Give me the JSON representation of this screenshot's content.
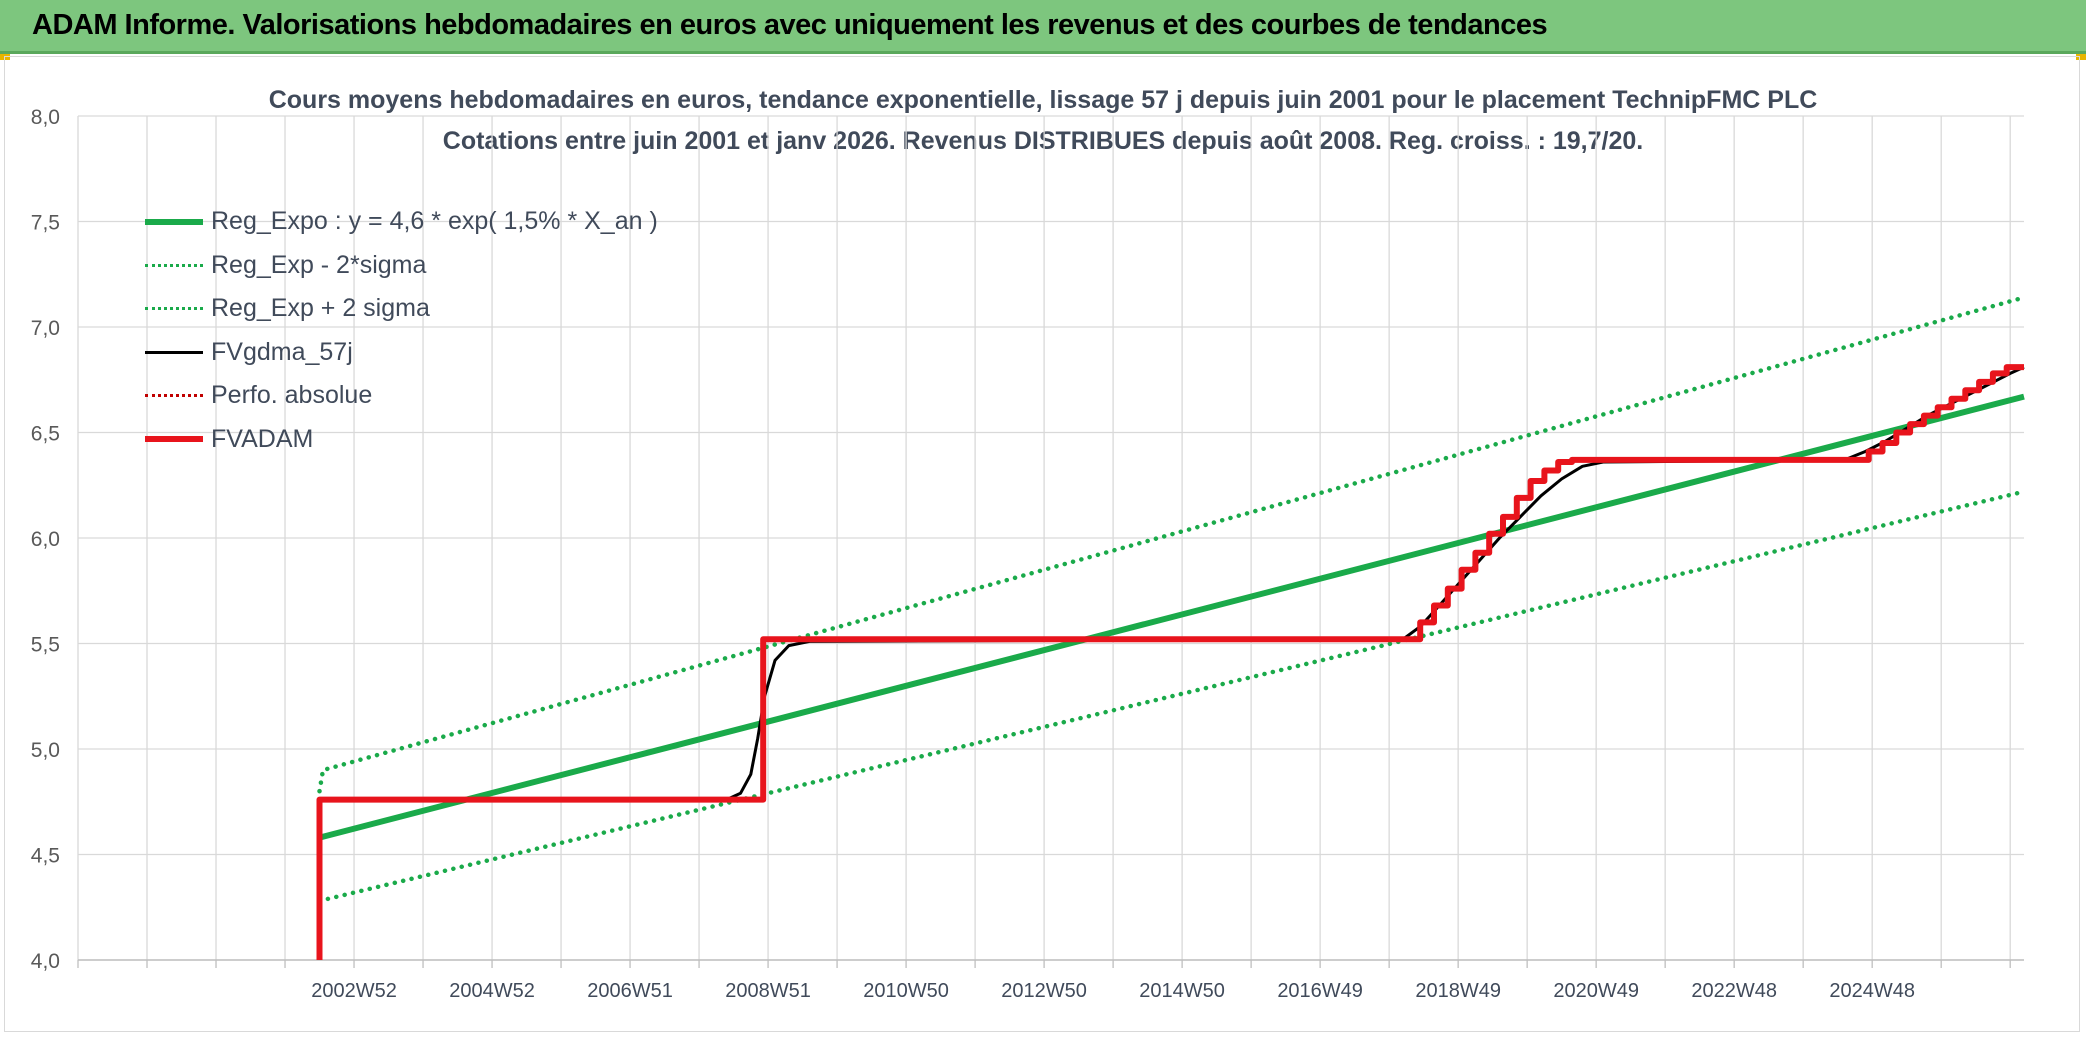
{
  "banner": {
    "title": "ADAM Informe. Valorisations hebdomadaires en euros avec uniquement les revenus et des courbes de tendances"
  },
  "colors": {
    "banner": "#7dc67e",
    "reg_expo": "#1aaa4a",
    "reg_band": "#1aaa4a",
    "fvgdma": "#000000",
    "perfo": "#c00000",
    "fvadam": "#e8141c",
    "grid": "#d9d9d9"
  },
  "chart_data": {
    "type": "line",
    "title_line1": "Cours moyens hebdomadaires en euros, tendance exponentielle, lissage 57 j depuis juin 2001 pour le placement TechnipFMC PLC",
    "title_line2": "Cotations entre juin 2001 et janv 2026. Revenus DISTRIBUES depuis août 2008. Reg. croiss. : 19,7/20.",
    "ylim": [
      4.0,
      8.0
    ],
    "yticks": [
      "4,0",
      "4,5",
      "5,0",
      "5,5",
      "6,0",
      "6,5",
      "7,0",
      "7,5",
      "8,0"
    ],
    "xlim": [
      1998,
      2026.2
    ],
    "xtick_labels": [
      "2002W52",
      "2004W52",
      "2006W51",
      "2008W51",
      "2010W50",
      "2012W50",
      "2014W50",
      "2016W49",
      "2018W49",
      "2020W49",
      "2022W48",
      "2024W48"
    ],
    "xtick_years": [
      2002.0,
      2004.0,
      2006.0,
      2008.0,
      2010.0,
      2012.0,
      2014.0,
      2016.0,
      2018.0,
      2020.0,
      2022.0,
      2024.0
    ],
    "legend_position": "top-left",
    "grid": true,
    "series": [
      {
        "name": "Reg_Expo : y = 4,6 * exp( 1,5% *  X_an )",
        "style": "solid-thick",
        "color": "#1aaa4a",
        "x": [
          2001.5,
          2026.2
        ],
        "y": [
          4.58,
          6.67
        ]
      },
      {
        "name": "Reg_Exp - 2*sigma",
        "style": "dotted",
        "color": "#1aaa4a",
        "x": [
          2001.5,
          2026.2
        ],
        "y": [
          4.28,
          6.22
        ]
      },
      {
        "name": "Reg_Exp + 2 sigma",
        "style": "dotted",
        "color": "#1aaa4a",
        "x": [
          2001.5,
          2001.55,
          2026.2
        ],
        "y": [
          4.8,
          4.9,
          7.14
        ]
      },
      {
        "name": "FVgdma_57j",
        "style": "solid",
        "color": "#000000",
        "x": [
          2001.5,
          2001.5,
          2007.4,
          2007.6,
          2007.75,
          2007.85,
          2007.95,
          2008.1,
          2008.3,
          2008.6,
          2017.2,
          2017.45,
          2017.7,
          2018.0,
          2018.3,
          2018.6,
          2018.9,
          2019.2,
          2019.5,
          2019.8,
          2020.1,
          2023.6,
          2023.9,
          2024.2,
          2024.5,
          2024.8,
          2025.1,
          2025.4,
          2025.7,
          2026.0,
          2026.2
        ],
        "y": [
          4.0,
          4.76,
          4.76,
          4.79,
          4.88,
          5.05,
          5.25,
          5.42,
          5.49,
          5.51,
          5.52,
          5.58,
          5.67,
          5.78,
          5.89,
          6.0,
          6.1,
          6.2,
          6.28,
          6.34,
          6.36,
          6.37,
          6.41,
          6.46,
          6.52,
          6.58,
          6.63,
          6.68,
          6.73,
          6.78,
          6.81
        ]
      },
      {
        "name": "Perfo. absolue",
        "style": "dotted",
        "color": "#c00000",
        "x": [],
        "y": []
      },
      {
        "name": "FVADAM",
        "style": "solid-thick",
        "color": "#e8141c",
        "x": [
          2001.5,
          2001.5,
          2007.93,
          2007.93,
          2017.45,
          2017.45,
          2017.65,
          2017.65,
          2017.85,
          2017.85,
          2018.05,
          2018.05,
          2018.25,
          2018.25,
          2018.45,
          2018.45,
          2018.65,
          2018.65,
          2018.85,
          2018.85,
          2019.05,
          2019.05,
          2019.25,
          2019.25,
          2019.45,
          2019.45,
          2019.65,
          2019.65,
          2019.85,
          2019.85,
          2023.95,
          2023.95,
          2024.15,
          2024.15,
          2024.35,
          2024.35,
          2024.55,
          2024.55,
          2024.75,
          2024.75,
          2024.95,
          2024.95,
          2025.15,
          2025.15,
          2025.35,
          2025.35,
          2025.55,
          2025.55,
          2025.75,
          2025.75,
          2025.95,
          2025.95,
          2026.2
        ],
        "y": [
          4.0,
          4.76,
          4.76,
          5.52,
          5.52,
          5.6,
          5.6,
          5.68,
          5.68,
          5.76,
          5.76,
          5.85,
          5.85,
          5.93,
          5.93,
          6.02,
          6.02,
          6.1,
          6.1,
          6.19,
          6.19,
          6.27,
          6.27,
          6.32,
          6.32,
          6.36,
          6.36,
          6.37,
          6.37,
          6.37,
          6.37,
          6.41,
          6.41,
          6.45,
          6.45,
          6.5,
          6.5,
          6.54,
          6.54,
          6.58,
          6.58,
          6.62,
          6.62,
          6.66,
          6.66,
          6.7,
          6.7,
          6.74,
          6.74,
          6.78,
          6.78,
          6.81,
          6.81
        ]
      }
    ]
  }
}
